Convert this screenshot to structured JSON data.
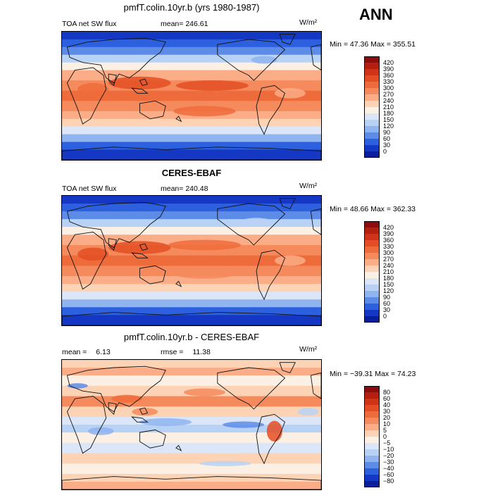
{
  "season": "ANN",
  "panels": [
    {
      "id": "model",
      "title": "pmfT.colin.10yr.b (yrs 1980-1987)",
      "variable": "TOA net SW flux",
      "stat_label": "mean=",
      "stat_value": "246.61",
      "units": "W/m²",
      "min_label": "Min =",
      "min_value": "47.36",
      "max_label": "Max =",
      "max_value": "355.51",
      "colorbar": {
        "labels": [
          "420",
          "390",
          "360",
          "330",
          "300",
          "270",
          "240",
          "210",
          "180",
          "150",
          "120",
          "90",
          "60",
          "30",
          "0"
        ],
        "colors": [
          "#8b0d0d",
          "#b4200f",
          "#cf3418",
          "#e44d23",
          "#ee6b3b",
          "#f58a5c",
          "#fbad87",
          "#fdd3b5",
          "#fcefe3",
          "#dbe7f8",
          "#b8d2f5",
          "#8fb4ef",
          "#5d8ce8",
          "#2c60df",
          "#1438c4",
          "#0a1e9a"
        ]
      },
      "map_style": "model"
    },
    {
      "id": "obs",
      "title": "CERES-EBAF",
      "variable": "TOA net SW flux",
      "stat_label": "mean=",
      "stat_value": "240.48",
      "units": "W/m²",
      "min_label": "Min =",
      "min_value": "48.66",
      "max_label": "Max =",
      "max_value": "362.33",
      "colorbar": {
        "labels": [
          "420",
          "390",
          "360",
          "330",
          "300",
          "270",
          "240",
          "210",
          "180",
          "150",
          "120",
          "90",
          "60",
          "30",
          "0"
        ],
        "colors": [
          "#8b0d0d",
          "#b4200f",
          "#cf3418",
          "#e44d23",
          "#ee6b3b",
          "#f58a5c",
          "#fbad87",
          "#fdd3b5",
          "#fcefe3",
          "#dbe7f8",
          "#b8d2f5",
          "#8fb4ef",
          "#5d8ce8",
          "#2c60df",
          "#1438c4",
          "#0a1e9a"
        ]
      },
      "map_style": "obs"
    },
    {
      "id": "diff",
      "title": "pmfT.colin.10yr.b - CERES-EBAF",
      "mean_label": "mean =",
      "mean_value": "6.13",
      "rmse_label": "rmse =",
      "rmse_value": "11.38",
      "units": "W/m²",
      "min_label": "Min =",
      "min_value": "−39.31",
      "max_label": "Max =",
      "max_value": "74.23",
      "colorbar": {
        "labels": [
          "80",
          "60",
          "40",
          "30",
          "20",
          "10",
          "5",
          "0",
          "−5",
          "−10",
          "−20",
          "−30",
          "−40",
          "−60",
          "−80"
        ],
        "colors": [
          "#8b0d0d",
          "#b4200f",
          "#cf3418",
          "#e44d23",
          "#ee6b3b",
          "#f58a5c",
          "#fbad87",
          "#fdd3b5",
          "#fcefe3",
          "#dbe7f8",
          "#b8d2f5",
          "#8fb4ef",
          "#5d8ce8",
          "#2c60df",
          "#1438c4",
          "#0a1e9a"
        ]
      },
      "map_style": "diff"
    }
  ]
}
